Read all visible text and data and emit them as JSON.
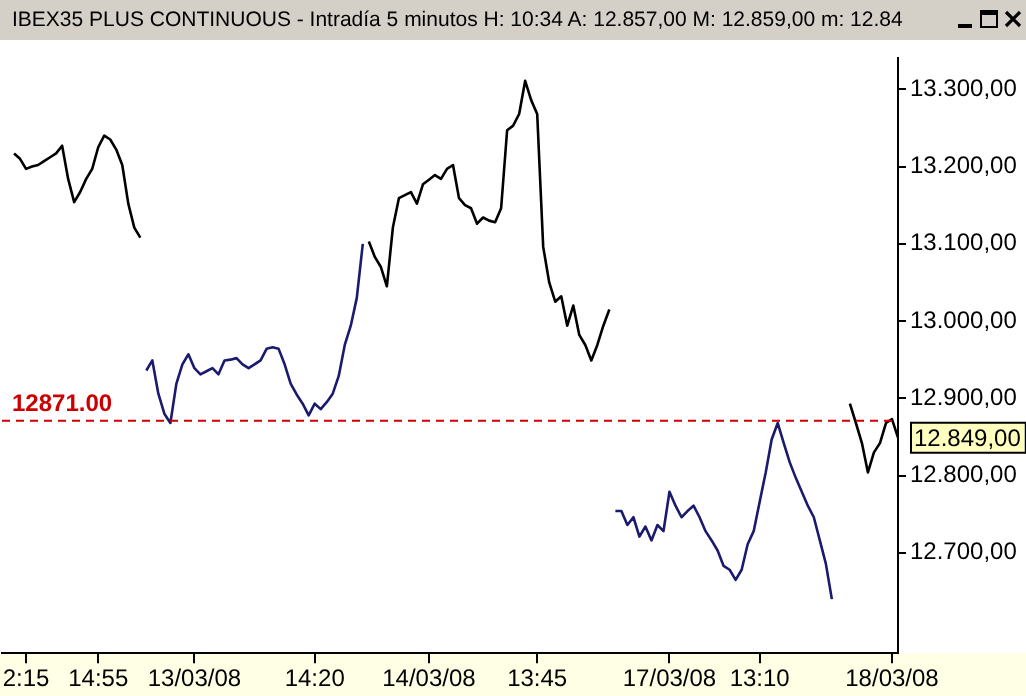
{
  "chart_data": {
    "type": "line",
    "title": "IBEX35 PLUS CONTINUOUS - Intradía 5 minutos H: 10:34 A: 12.857,00 M: 12.859,00 m: 12.84",
    "categories": [
      null,
      null,
      null,
      null,
      "2:15",
      null,
      null,
      null,
      null,
      null,
      null,
      null,
      null,
      null,
      null,
      null,
      "14:55",
      null,
      null,
      null,
      null,
      null,
      null,
      null,
      null,
      null,
      null,
      null,
      null,
      null,
      null,
      null,
      "13/03/08",
      null,
      null,
      null,
      null,
      null,
      null,
      null,
      null,
      null,
      null,
      null,
      null,
      null,
      null,
      null,
      null,
      null,
      null,
      null,
      "14:20",
      null,
      null,
      null,
      null,
      null,
      null,
      null,
      null,
      null,
      null,
      null,
      null,
      null,
      null,
      null,
      null,
      null,
      null,
      "14/03/08",
      null,
      null,
      null,
      null,
      null,
      null,
      null,
      null,
      null,
      null,
      null,
      null,
      null,
      null,
      null,
      null,
      null,
      "13:45",
      null,
      null,
      null,
      null,
      null,
      null,
      null,
      null,
      null,
      null,
      null,
      null,
      null,
      null,
      null,
      null,
      null,
      null,
      null,
      null,
      null,
      "17/03/08",
      null,
      null,
      null,
      null,
      null,
      null,
      null,
      null,
      null,
      null,
      null,
      null,
      null,
      null,
      "13:10",
      null,
      null,
      null,
      null,
      null,
      null,
      null,
      null,
      null,
      null,
      null,
      null,
      null,
      null,
      null,
      null,
      null,
      null,
      null,
      null,
      null,
      "18/03/08",
      null
    ],
    "ylim": [
      12570,
      13340
    ],
    "yticks": [
      {
        "value": 12700,
        "label": "12.700,00"
      },
      {
        "value": 12800,
        "label": "12.800,00"
      },
      {
        "value": 12900,
        "label": "12.900,00"
      },
      {
        "value": 13000,
        "label": "13.000,00"
      },
      {
        "value": 13100,
        "label": "13.100,00"
      },
      {
        "value": 13200,
        "label": "13.200,00"
      },
      {
        "value": 13300,
        "label": "13.300,00"
      }
    ],
    "grid": false,
    "series": [
      {
        "color": "#000000",
        "values": [
          null,
          null,
          13217,
          13210,
          13197,
          13200,
          13202,
          13207,
          13212,
          13217,
          13227,
          13184,
          13154,
          13167,
          13184,
          13197,
          13225,
          13240,
          13235,
          13222,
          13202,
          13152,
          13121,
          13108,
          null,
          null,
          null,
          null,
          null,
          null,
          null,
          null,
          null,
          null,
          null,
          null,
          null,
          null,
          null,
          null,
          null,
          null,
          null,
          null,
          null,
          null,
          null,
          null,
          null,
          null,
          null,
          null,
          null,
          null,
          null,
          null,
          null,
          null,
          null,
          null,
          null,
          null,
          null,
          null,
          null,
          null,
          null,
          null,
          null,
          null,
          null,
          null,
          null,
          null,
          null,
          null,
          null,
          null,
          null,
          null,
          null,
          null,
          null,
          null,
          null,
          null,
          null,
          null,
          null,
          null,
          null,
          null,
          null,
          null,
          null,
          null,
          null,
          null,
          null,
          null,
          null,
          null,
          null,
          null,
          null,
          null,
          null,
          null,
          null,
          null,
          null,
          null,
          null,
          null,
          null,
          null,
          null,
          null,
          null,
          null,
          null,
          null,
          null,
          null,
          null,
          null,
          null,
          null,
          null,
          null,
          null,
          null,
          null,
          null,
          null,
          null,
          null,
          null,
          null,
          null,
          null,
          null,
          null,
          null,
          null,
          null,
          null,
          null,
          null,
          null
        ]
      },
      {
        "color": "#1a1a6e",
        "values": [
          null,
          null,
          null,
          null,
          null,
          null,
          null,
          null,
          null,
          null,
          null,
          null,
          null,
          null,
          null,
          null,
          null,
          null,
          null,
          null,
          null,
          null,
          null,
          null,
          12936,
          12949,
          12906,
          12880,
          12868,
          12919,
          12944,
          12957,
          12939,
          12931,
          12935,
          12939,
          12931,
          12949,
          12950,
          12952,
          12944,
          12939,
          12944,
          12949,
          12964,
          12966,
          12964,
          12944,
          12919,
          12905,
          12893,
          12878,
          12893,
          12886,
          12895,
          12906,
          12929,
          12969,
          12994,
          13030,
          13100,
          null,
          null,
          null,
          null,
          null,
          null,
          null,
          null,
          null,
          null,
          null,
          null,
          null,
          null,
          null,
          null,
          null,
          null,
          null,
          null,
          null,
          null,
          null,
          null,
          null,
          null,
          null,
          null,
          null,
          null,
          null,
          null,
          null,
          null,
          null,
          null,
          null,
          null,
          null,
          null,
          null,
          null,
          null,
          null,
          null,
          null,
          null,
          null,
          null,
          null,
          null,
          null,
          null,
          null,
          null,
          null,
          null,
          null,
          null,
          null,
          null,
          null,
          null,
          null,
          null,
          null,
          null,
          null,
          null,
          null,
          null,
          null,
          null,
          null,
          null,
          null,
          null,
          null,
          null,
          null,
          null,
          null,
          null,
          null,
          null,
          null,
          null,
          null,
          null
        ]
      },
      {
        "color": "#000000",
        "values": [
          null,
          null,
          null,
          null,
          null,
          null,
          null,
          null,
          null,
          null,
          null,
          null,
          null,
          null,
          null,
          null,
          null,
          null,
          null,
          null,
          null,
          null,
          null,
          null,
          null,
          null,
          null,
          null,
          null,
          null,
          null,
          null,
          null,
          null,
          null,
          null,
          null,
          null,
          null,
          null,
          null,
          null,
          null,
          null,
          null,
          null,
          null,
          null,
          null,
          null,
          null,
          null,
          null,
          null,
          null,
          null,
          null,
          null,
          null,
          null,
          null,
          13103,
          13083,
          13070,
          13045,
          13121,
          13159,
          13163,
          13167,
          13152,
          13177,
          13183,
          13189,
          13184,
          13197,
          13202,
          13159,
          13150,
          13146,
          13126,
          13134,
          13130,
          13128,
          13146,
          13247,
          13253,
          13268,
          13311,
          13286,
          13268,
          13096,
          13050,
          13025,
          13032,
          12994,
          13020,
          12982,
          12969,
          12949,
          12969,
          12994,
          13015,
          null,
          null,
          null,
          null,
          null,
          null,
          null,
          null,
          null,
          null,
          null,
          null,
          null,
          null,
          null,
          null,
          null,
          null,
          null,
          null,
          null,
          null,
          null,
          null,
          null,
          null,
          null,
          null,
          null,
          null,
          null,
          null,
          null,
          null,
          null,
          null,
          null,
          null,
          null,
          null,
          null,
          null,
          null,
          null,
          null,
          null,
          null,
          null
        ]
      },
      {
        "color": "#1a1a6e",
        "values": [
          null,
          null,
          null,
          null,
          null,
          null,
          null,
          null,
          null,
          null,
          null,
          null,
          null,
          null,
          null,
          null,
          null,
          null,
          null,
          null,
          null,
          null,
          null,
          null,
          null,
          null,
          null,
          null,
          null,
          null,
          null,
          null,
          null,
          null,
          null,
          null,
          null,
          null,
          null,
          null,
          null,
          null,
          null,
          null,
          null,
          null,
          null,
          null,
          null,
          null,
          null,
          null,
          null,
          null,
          null,
          null,
          null,
          null,
          null,
          null,
          null,
          null,
          null,
          null,
          null,
          null,
          null,
          null,
          null,
          null,
          null,
          null,
          null,
          null,
          null,
          null,
          null,
          null,
          null,
          null,
          null,
          null,
          null,
          null,
          null,
          null,
          null,
          null,
          null,
          null,
          null,
          null,
          null,
          null,
          null,
          null,
          null,
          null,
          null,
          null,
          null,
          null,
          12754,
          12754,
          12736,
          12746,
          12721,
          12734,
          12716,
          12736,
          12728,
          12779,
          12761,
          12746,
          12754,
          12761,
          12746,
          12728,
          12716,
          12703,
          12683,
          12678,
          12665,
          12678,
          12711,
          12728,
          12766,
          12804,
          12847,
          12868,
          12842,
          12817,
          12797,
          12779,
          12761,
          12746,
          12716,
          12686,
          12640,
          null,
          null,
          null,
          null,
          null,
          null,
          null,
          null,
          null,
          null,
          null
        ]
      },
      {
        "color": "#000000",
        "values": [
          null,
          null,
          null,
          null,
          null,
          null,
          null,
          null,
          null,
          null,
          null,
          null,
          null,
          null,
          null,
          null,
          null,
          null,
          null,
          null,
          null,
          null,
          null,
          null,
          null,
          null,
          null,
          null,
          null,
          null,
          null,
          null,
          null,
          null,
          null,
          null,
          null,
          null,
          null,
          null,
          null,
          null,
          null,
          null,
          null,
          null,
          null,
          null,
          null,
          null,
          null,
          null,
          null,
          null,
          null,
          null,
          null,
          null,
          null,
          null,
          null,
          null,
          null,
          null,
          null,
          null,
          null,
          null,
          null,
          null,
          null,
          null,
          null,
          null,
          null,
          null,
          null,
          null,
          null,
          null,
          null,
          null,
          null,
          null,
          null,
          null,
          null,
          null,
          null,
          null,
          null,
          null,
          null,
          null,
          null,
          null,
          null,
          null,
          null,
          null,
          null,
          null,
          null,
          null,
          null,
          null,
          null,
          null,
          null,
          null,
          null,
          null,
          null,
          null,
          null,
          null,
          null,
          null,
          null,
          null,
          null,
          null,
          null,
          null,
          null,
          null,
          null,
          null,
          null,
          null,
          null,
          null,
          null,
          null,
          null,
          null,
          null,
          null,
          null,
          null,
          null,
          12893,
          12868,
          12842,
          12804,
          12830,
          12842,
          12868,
          12873,
          12849
        ]
      }
    ],
    "ref_lines": [
      {
        "axis": "y",
        "value": 12871,
        "label": "12871.00",
        "color": "#cc0000",
        "line_style": "dashed"
      }
    ],
    "annotations": [
      "12.849,00"
    ]
  }
}
